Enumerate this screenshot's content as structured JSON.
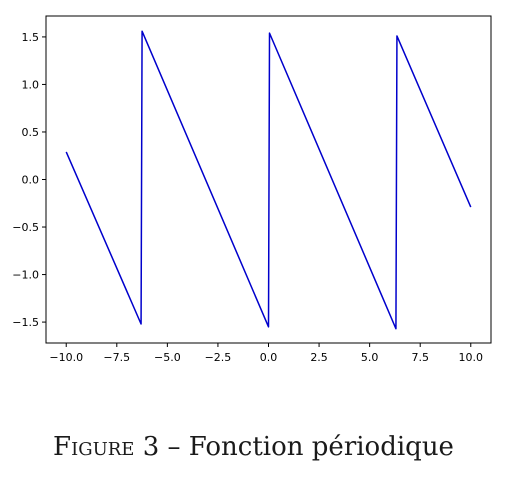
{
  "chart_data": {
    "type": "line",
    "title": "",
    "xlabel": "",
    "ylabel": "",
    "xlim": [
      -11,
      11
    ],
    "ylim": [
      -1.72,
      1.72
    ],
    "xticks": [
      -10.0,
      -7.5,
      -5.0,
      -2.5,
      0.0,
      2.5,
      5.0,
      7.5,
      10.0
    ],
    "xtick_labels": [
      "−10.0",
      "−7.5",
      "−5.0",
      "−2.5",
      "0.0",
      "2.5",
      "5.0",
      "7.5",
      "10.0"
    ],
    "yticks": [
      1.5,
      1.0,
      0.5,
      0.0,
      -0.5,
      -1.0,
      -1.5
    ],
    "ytick_labels": [
      "1.5",
      "1.0",
      "0.5",
      "0.0",
      "−0.5",
      "−1.0",
      "−1.5"
    ],
    "grid": false,
    "series": [
      {
        "color": "#0000cc",
        "x": [
          -10.0,
          -6.3,
          -6.25,
          0.0,
          0.05,
          6.3,
          6.35,
          10.0
        ],
        "y": [
          0.29,
          -1.52,
          1.56,
          -1.55,
          1.54,
          -1.57,
          1.51,
          -0.29
        ]
      }
    ]
  },
  "caption": {
    "label_first": "F",
    "label_rest": "igure",
    "number": "3",
    "separator": "–",
    "text": "Fonction périodique"
  }
}
